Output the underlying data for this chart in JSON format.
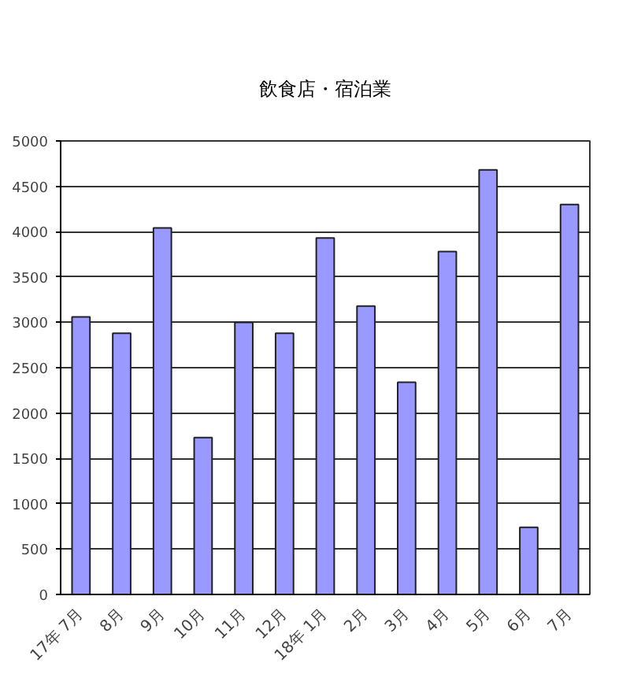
{
  "chart_data": {
    "type": "bar",
    "title": "飲食店・宿泊業",
    "categories": [
      "17年 7月",
      "8月",
      "9月",
      "10月",
      "11月",
      "12月",
      "18年 1月",
      "2月",
      "3月",
      "4月",
      "5月",
      "6月",
      "7月"
    ],
    "values": [
      3060,
      2880,
      4040,
      1730,
      3000,
      2880,
      3930,
      3180,
      2340,
      3780,
      4680,
      740,
      4300
    ],
    "color": "#9999ff",
    "ylim": [
      0,
      5000
    ],
    "yticks": [
      0,
      500,
      1000,
      1500,
      2000,
      2500,
      3000,
      3500,
      4000,
      4500,
      5000
    ],
    "grid": "y"
  }
}
